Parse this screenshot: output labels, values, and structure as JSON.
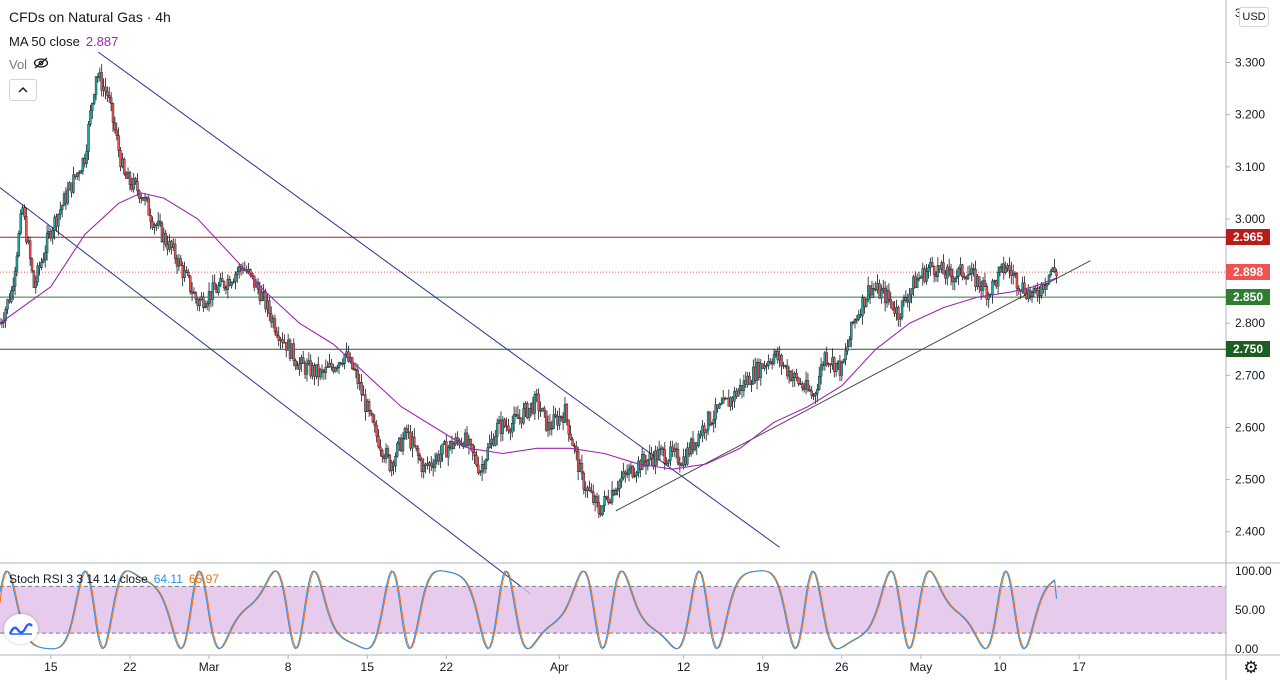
{
  "header": {
    "symbol_title": "CFDs on Natural Gas · 4h",
    "ma_label": "MA 50 close",
    "ma_value": "2.887",
    "vol_label": "Vol",
    "vol_icon": "eye-off-icon",
    "collapse_icon": "chevron-up-icon"
  },
  "currency": "USD",
  "stoch": {
    "label": "Stoch RSI 3 3 14 14 close",
    "k_value": "64.11",
    "d_value": "65.97"
  },
  "colors": {
    "up": "#26a69a",
    "down": "#ef5350",
    "ma": "#9c27b0",
    "resistance": "#b71c1c",
    "support_1": "#2e7d32",
    "support_2": "#1b5e20",
    "channel": "#283593",
    "trendline": "#4a4a4a",
    "k_line": "#2196f3",
    "d_line": "#ff6d00",
    "stoch_band": "#e1bee7"
  },
  "price_tags": [
    {
      "value": "2.965",
      "color": "#b71c1c"
    },
    {
      "value": "2.898",
      "color": "#ef5350"
    },
    {
      "value": "2.850",
      "color": "#2e7d32"
    },
    {
      "value": "2.750",
      "color": "#1b5e20"
    }
  ],
  "chart_data": {
    "type": "candlestick",
    "title": "CFDs on Natural Gas · 4h",
    "y_ticks": [
      "3.300",
      "3.200",
      "3.100",
      "3.000",
      "2.900",
      "2.800",
      "2.700",
      "2.600",
      "2.500",
      "2.400"
    ],
    "ylim": [
      2.34,
      3.42
    ],
    "x_ticks": [
      "15",
      "22",
      "Mar",
      "8",
      "15",
      "22",
      "Apr",
      "12",
      "19",
      "26",
      "May",
      "10",
      "17"
    ],
    "x_tick_days": [
      14,
      21,
      28,
      35,
      42,
      49,
      59,
      70,
      77,
      84,
      91,
      98,
      105
    ],
    "x_range_days": [
      9.5,
      118
    ],
    "close_path": [
      {
        "day": 9.5,
        "price": 2.8
      },
      {
        "day": 10.5,
        "price": 2.86
      },
      {
        "day": 11.5,
        "price": 3.02
      },
      {
        "day": 12.5,
        "price": 2.87
      },
      {
        "day": 14,
        "price": 2.98
      },
      {
        "day": 15.5,
        "price": 3.05
      },
      {
        "day": 17,
        "price": 3.12
      },
      {
        "day": 18,
        "price": 3.28
      },
      {
        "day": 19,
        "price": 3.24
      },
      {
        "day": 20.5,
        "price": 3.08
      },
      {
        "day": 22,
        "price": 3.05
      },
      {
        "day": 23,
        "price": 3.0
      },
      {
        "day": 25,
        "price": 2.93
      },
      {
        "day": 27,
        "price": 2.84
      },
      {
        "day": 29,
        "price": 2.87
      },
      {
        "day": 31,
        "price": 2.91
      },
      {
        "day": 32.5,
        "price": 2.86
      },
      {
        "day": 34,
        "price": 2.79
      },
      {
        "day": 36,
        "price": 2.72
      },
      {
        "day": 38,
        "price": 2.7
      },
      {
        "day": 40,
        "price": 2.74
      },
      {
        "day": 41,
        "price": 2.7
      },
      {
        "day": 42.5,
        "price": 2.6
      },
      {
        "day": 44,
        "price": 2.53
      },
      {
        "day": 45.5,
        "price": 2.59
      },
      {
        "day": 47,
        "price": 2.52
      },
      {
        "day": 49,
        "price": 2.56
      },
      {
        "day": 50.5,
        "price": 2.58
      },
      {
        "day": 52,
        "price": 2.52
      },
      {
        "day": 53.5,
        "price": 2.6
      },
      {
        "day": 55,
        "price": 2.61
      },
      {
        "day": 57,
        "price": 2.65
      },
      {
        "day": 58,
        "price": 2.6
      },
      {
        "day": 59.5,
        "price": 2.63
      },
      {
        "day": 61,
        "price": 2.5
      },
      {
        "day": 62.5,
        "price": 2.44
      },
      {
        "day": 64,
        "price": 2.49
      },
      {
        "day": 66,
        "price": 2.53
      },
      {
        "day": 68,
        "price": 2.55
      },
      {
        "day": 70,
        "price": 2.54
      },
      {
        "day": 72,
        "price": 2.61
      },
      {
        "day": 74,
        "price": 2.65
      },
      {
        "day": 76,
        "price": 2.7
      },
      {
        "day": 78,
        "price": 2.74
      },
      {
        "day": 80,
        "price": 2.69
      },
      {
        "day": 81.5,
        "price": 2.66
      },
      {
        "day": 82.5,
        "price": 2.74
      },
      {
        "day": 84,
        "price": 2.71
      },
      {
        "day": 85,
        "price": 2.8
      },
      {
        "day": 86.5,
        "price": 2.87
      },
      {
        "day": 88,
        "price": 2.85
      },
      {
        "day": 89,
        "price": 2.82
      },
      {
        "day": 90.5,
        "price": 2.88
      },
      {
        "day": 92,
        "price": 2.91
      },
      {
        "day": 93.5,
        "price": 2.89
      },
      {
        "day": 95,
        "price": 2.9
      },
      {
        "day": 97,
        "price": 2.86
      },
      {
        "day": 98.5,
        "price": 2.91
      },
      {
        "day": 100,
        "price": 2.87
      },
      {
        "day": 101,
        "price": 2.85
      },
      {
        "day": 102.5,
        "price": 2.9
      },
      {
        "day": 103,
        "price": 2.898
      }
    ],
    "ma50_path": [
      {
        "day": 9.5,
        "price": 2.8
      },
      {
        "day": 14,
        "price": 2.87
      },
      {
        "day": 17,
        "price": 2.97
      },
      {
        "day": 20,
        "price": 3.03
      },
      {
        "day": 22,
        "price": 3.05
      },
      {
        "day": 24,
        "price": 3.04
      },
      {
        "day": 27,
        "price": 3.0
      },
      {
        "day": 30,
        "price": 2.93
      },
      {
        "day": 33,
        "price": 2.86
      },
      {
        "day": 36,
        "price": 2.8
      },
      {
        "day": 39,
        "price": 2.76
      },
      {
        "day": 42,
        "price": 2.7
      },
      {
        "day": 45,
        "price": 2.64
      },
      {
        "day": 48,
        "price": 2.6
      },
      {
        "day": 51,
        "price": 2.56
      },
      {
        "day": 54,
        "price": 2.55
      },
      {
        "day": 57,
        "price": 2.56
      },
      {
        "day": 60,
        "price": 2.56
      },
      {
        "day": 63,
        "price": 2.55
      },
      {
        "day": 66,
        "price": 2.53
      },
      {
        "day": 69,
        "price": 2.52
      },
      {
        "day": 72,
        "price": 2.53
      },
      {
        "day": 75,
        "price": 2.56
      },
      {
        "day": 78,
        "price": 2.61
      },
      {
        "day": 81,
        "price": 2.64
      },
      {
        "day": 84,
        "price": 2.68
      },
      {
        "day": 87,
        "price": 2.75
      },
      {
        "day": 90,
        "price": 2.8
      },
      {
        "day": 93,
        "price": 2.83
      },
      {
        "day": 96,
        "price": 2.85
      },
      {
        "day": 99,
        "price": 2.86
      },
      {
        "day": 101,
        "price": 2.87
      },
      {
        "day": 103,
        "price": 2.887
      }
    ],
    "horizontal_levels": [
      {
        "price": 2.965,
        "style": "solid",
        "color": "#b71c1c"
      },
      {
        "price": 2.898,
        "style": "dotted",
        "color": "#ef5350"
      },
      {
        "price": 2.85,
        "style": "solid",
        "color": "#2e7d32"
      },
      {
        "price": 2.75,
        "style": "solid",
        "color": "#1b5e20"
      }
    ],
    "trend_lines": [
      {
        "from": {
          "day": 9.5,
          "price": 3.06
        },
        "to": {
          "day": 56.5,
          "price": 2.28
        },
        "color": "#283593"
      },
      {
        "from": {
          "day": 18.2,
          "price": 3.32
        },
        "to": {
          "day": 78.5,
          "price": 2.37
        },
        "color": "#283593"
      },
      {
        "from": {
          "day": 64,
          "price": 2.44
        },
        "to": {
          "day": 106,
          "price": 2.92
        },
        "color": "#4a4a4a"
      }
    ],
    "stoch_rsi": {
      "y_ticks": [
        "100.00",
        "50.00",
        "0.00"
      ],
      "ylim": [
        -8,
        110
      ],
      "band": [
        20,
        80
      ],
      "k_last": 64.11,
      "d_last": 65.97
    }
  }
}
